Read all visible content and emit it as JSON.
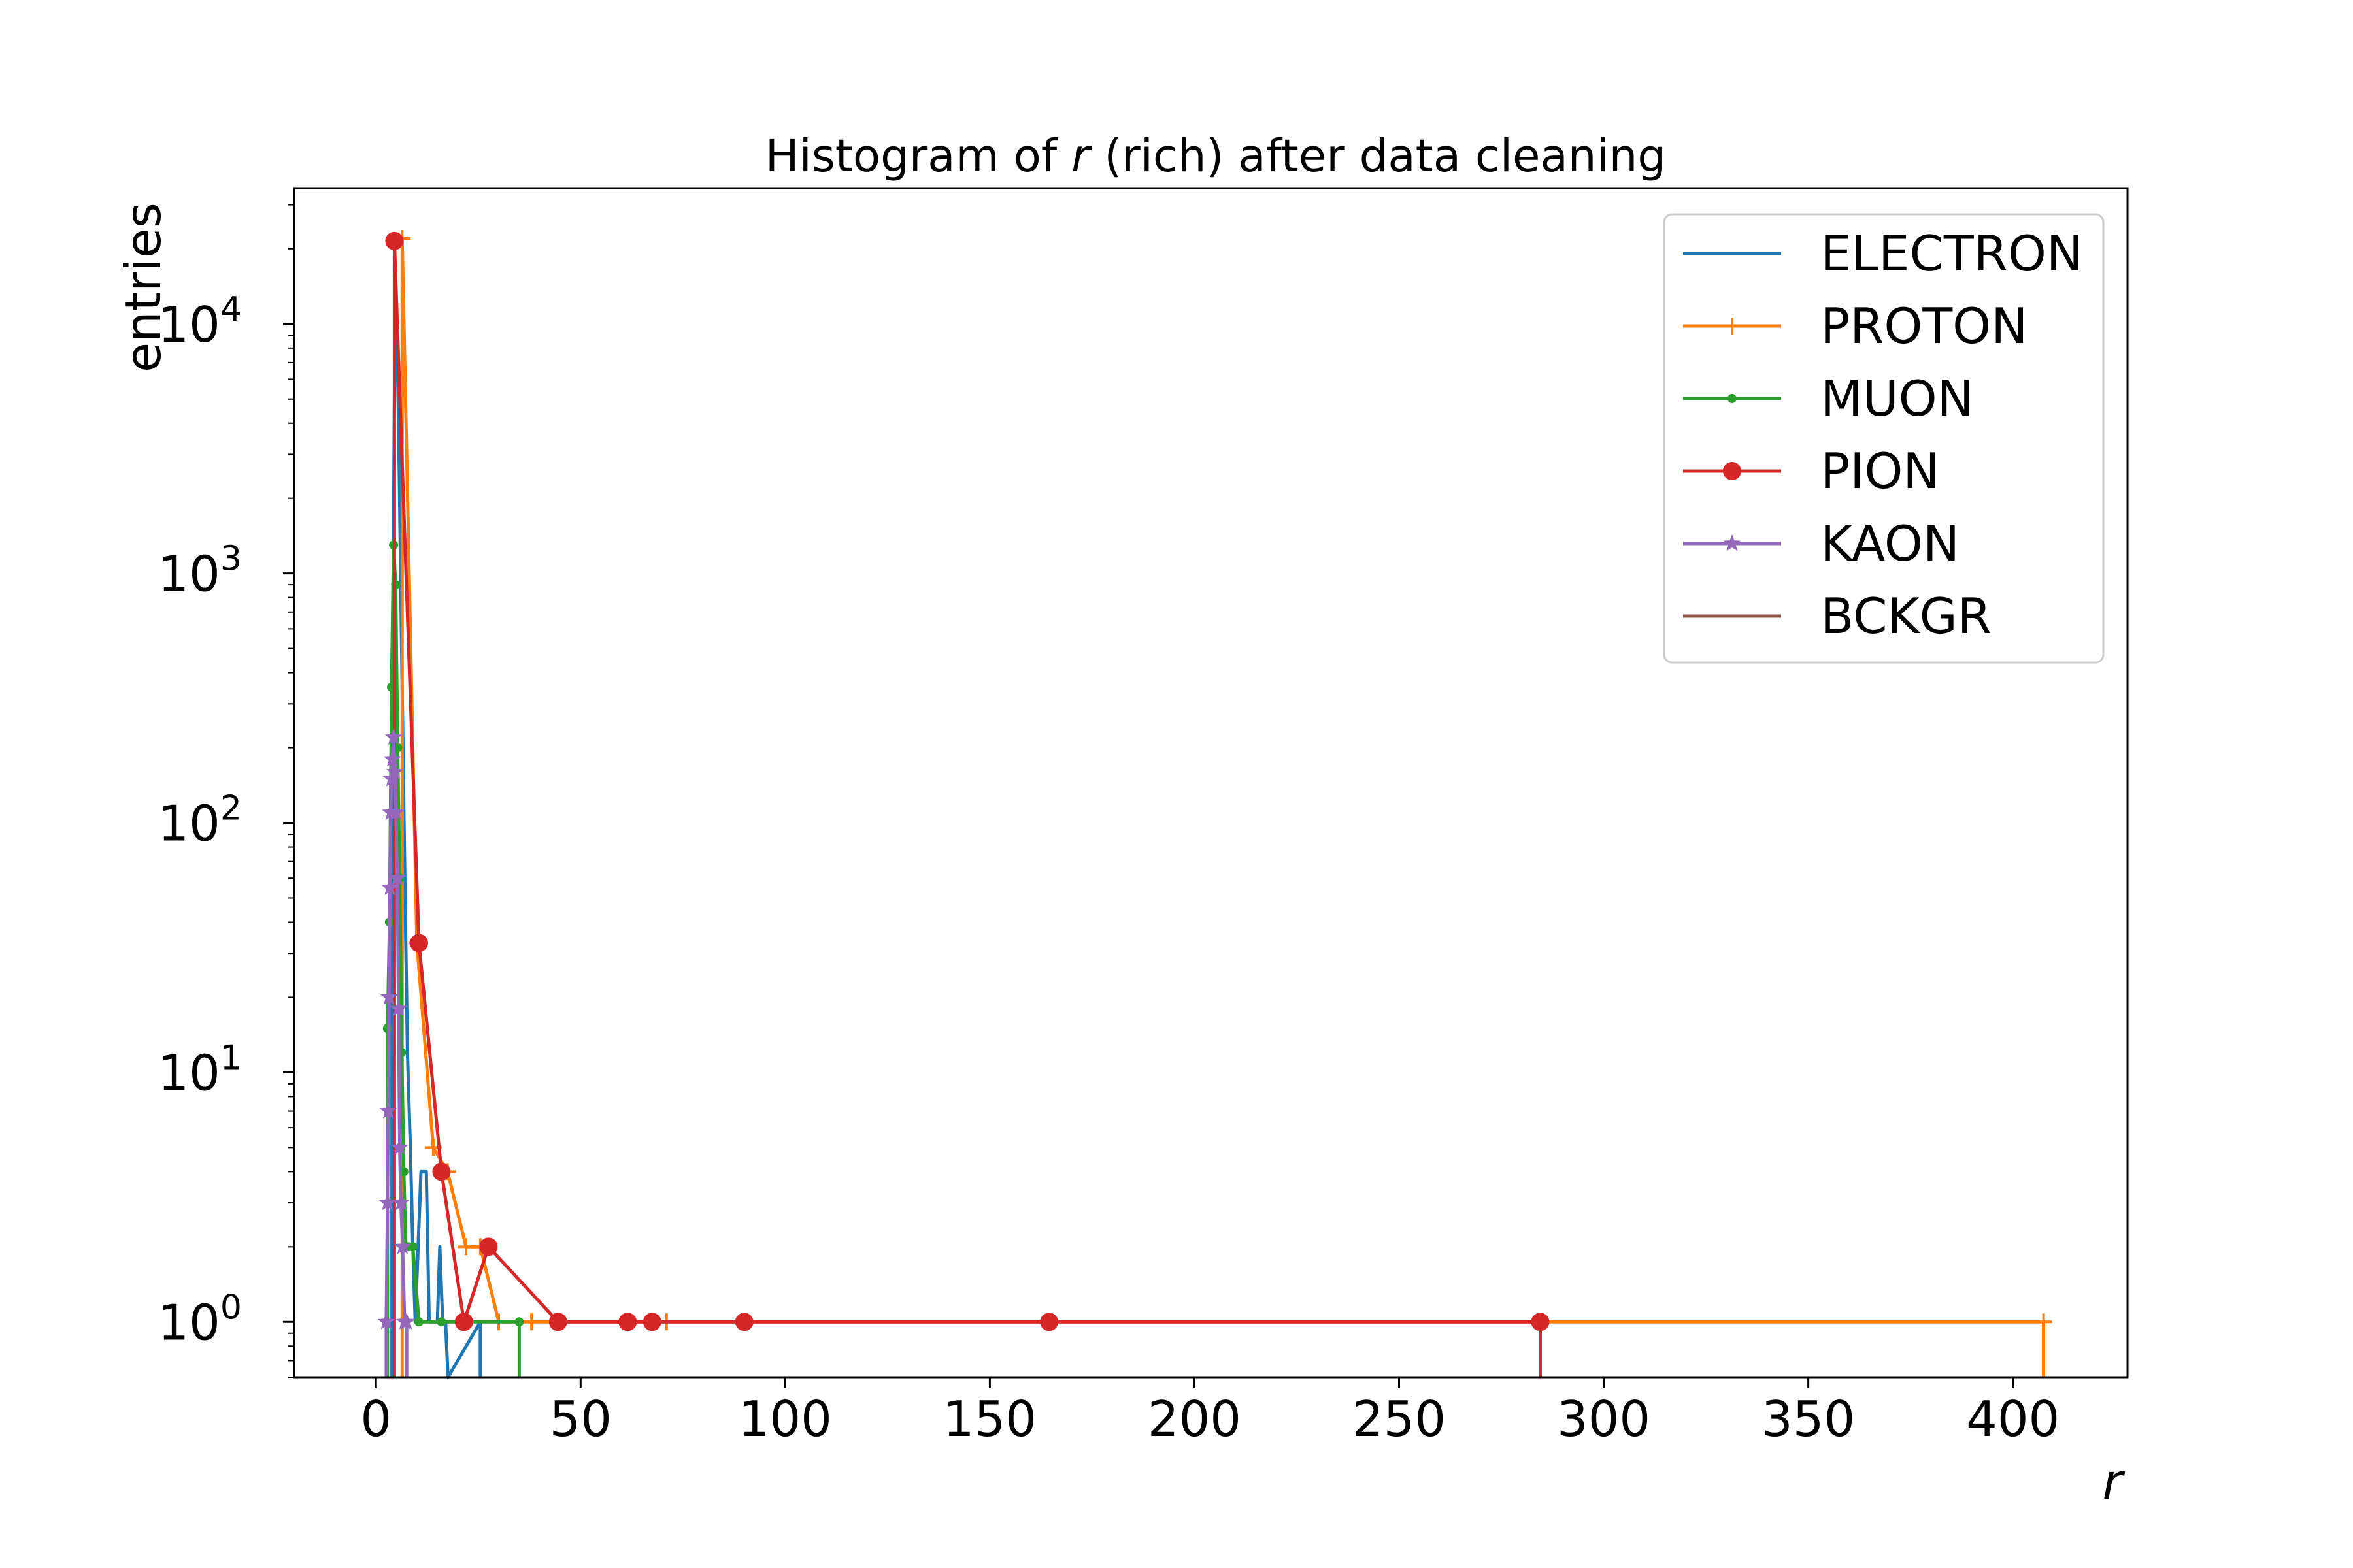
{
  "chart_data": {
    "type": "line",
    "title_prefix": "Histogram of ",
    "title_var": "r",
    "title_suffix": " (rich) after data cleaning",
    "xlabel": "r",
    "ylabel": "entries",
    "xlim": [
      -20,
      428
    ],
    "ylim": [
      0.6,
      35000
    ],
    "yscale": "log",
    "xticks": [
      0,
      50,
      100,
      150,
      200,
      250,
      300,
      350,
      400
    ],
    "xtick_labels": [
      "0",
      "50",
      "100",
      "150",
      "200",
      "250",
      "300",
      "350",
      "400"
    ],
    "yticks": [
      1,
      10,
      100,
      1000,
      10000
    ],
    "ytick_bases": [
      "10",
      "10",
      "10",
      "10",
      "10"
    ],
    "ytick_exps": [
      "0",
      "1",
      "2",
      "3",
      "4"
    ],
    "legend_position": "top-right",
    "series": [
      {
        "name": "ELECTRON",
        "color": "#1f77b4",
        "marker": "none",
        "points": [
          [
            3.9,
            300
          ],
          [
            4.3,
            1500
          ],
          [
            4.7,
            17000
          ],
          [
            5.2,
            8000
          ],
          [
            5.7,
            2500
          ],
          [
            6.2,
            600
          ],
          [
            6.7,
            150
          ],
          [
            7.2,
            40
          ],
          [
            7.7,
            12
          ],
          [
            8.4,
            5
          ],
          [
            9.0,
            2
          ],
          [
            9.6,
            1
          ],
          [
            10.3,
            2
          ],
          [
            11.0,
            4
          ],
          [
            11.7,
            4
          ],
          [
            12.3,
            4
          ],
          [
            13.0,
            1
          ],
          [
            13.6,
            1
          ],
          [
            14.3,
            1
          ],
          [
            15.0,
            1
          ],
          [
            15.6,
            2
          ],
          [
            16.3,
            1
          ],
          [
            17.0,
            1
          ],
          [
            17.6,
            0.6
          ],
          [
            25.5,
            1
          ]
        ]
      },
      {
        "name": "PROTON",
        "color": "#ff7f0e",
        "marker": "plus",
        "points": [
          [
            6.4,
            22000
          ],
          [
            10.0,
            33
          ],
          [
            14.0,
            5
          ],
          [
            17.5,
            4
          ],
          [
            22.0,
            2
          ],
          [
            25.5,
            2
          ],
          [
            30.0,
            1
          ],
          [
            38.0,
            1
          ],
          [
            71.0,
            1
          ],
          [
            407.5,
            1
          ]
        ]
      },
      {
        "name": "MUON",
        "color": "#2ca02c",
        "marker": "dot",
        "points": [
          [
            2.8,
            15
          ],
          [
            3.3,
            40
          ],
          [
            3.8,
            350
          ],
          [
            4.3,
            1300
          ],
          [
            4.8,
            900
          ],
          [
            5.3,
            200
          ],
          [
            5.8,
            60
          ],
          [
            6.3,
            12
          ],
          [
            6.8,
            4
          ],
          [
            7.3,
            2
          ],
          [
            8.0,
            2
          ],
          [
            9.0,
            2
          ],
          [
            10.5,
            1
          ],
          [
            16.0,
            1
          ],
          [
            35.0,
            1
          ]
        ]
      },
      {
        "name": "PION",
        "color": "#d62728",
        "marker": "circle",
        "points": [
          [
            4.5,
            21500
          ],
          [
            10.5,
            33
          ],
          [
            16.0,
            4
          ],
          [
            21.5,
            1
          ],
          [
            27.5,
            2
          ],
          [
            44.5,
            1
          ],
          [
            61.5,
            1
          ],
          [
            67.5,
            1
          ],
          [
            90.0,
            1
          ],
          [
            164.5,
            1
          ],
          [
            284.5,
            1
          ]
        ]
      },
      {
        "name": "KAON",
        "color": "#9467bd",
        "marker": "star",
        "points": [
          [
            2.5,
            1
          ],
          [
            2.8,
            3
          ],
          [
            3.0,
            7
          ],
          [
            3.2,
            20
          ],
          [
            3.4,
            55
          ],
          [
            3.6,
            110
          ],
          [
            3.8,
            150
          ],
          [
            4.0,
            180
          ],
          [
            4.3,
            220
          ],
          [
            4.6,
            160
          ],
          [
            4.9,
            110
          ],
          [
            5.2,
            60
          ],
          [
            5.5,
            18
          ],
          [
            5.8,
            5
          ],
          [
            6.1,
            3
          ],
          [
            6.5,
            2
          ],
          [
            7.0,
            1
          ],
          [
            7.5,
            1
          ]
        ]
      },
      {
        "name": "BCKGR",
        "color": "#8c564b",
        "marker": "none",
        "points": []
      }
    ]
  }
}
